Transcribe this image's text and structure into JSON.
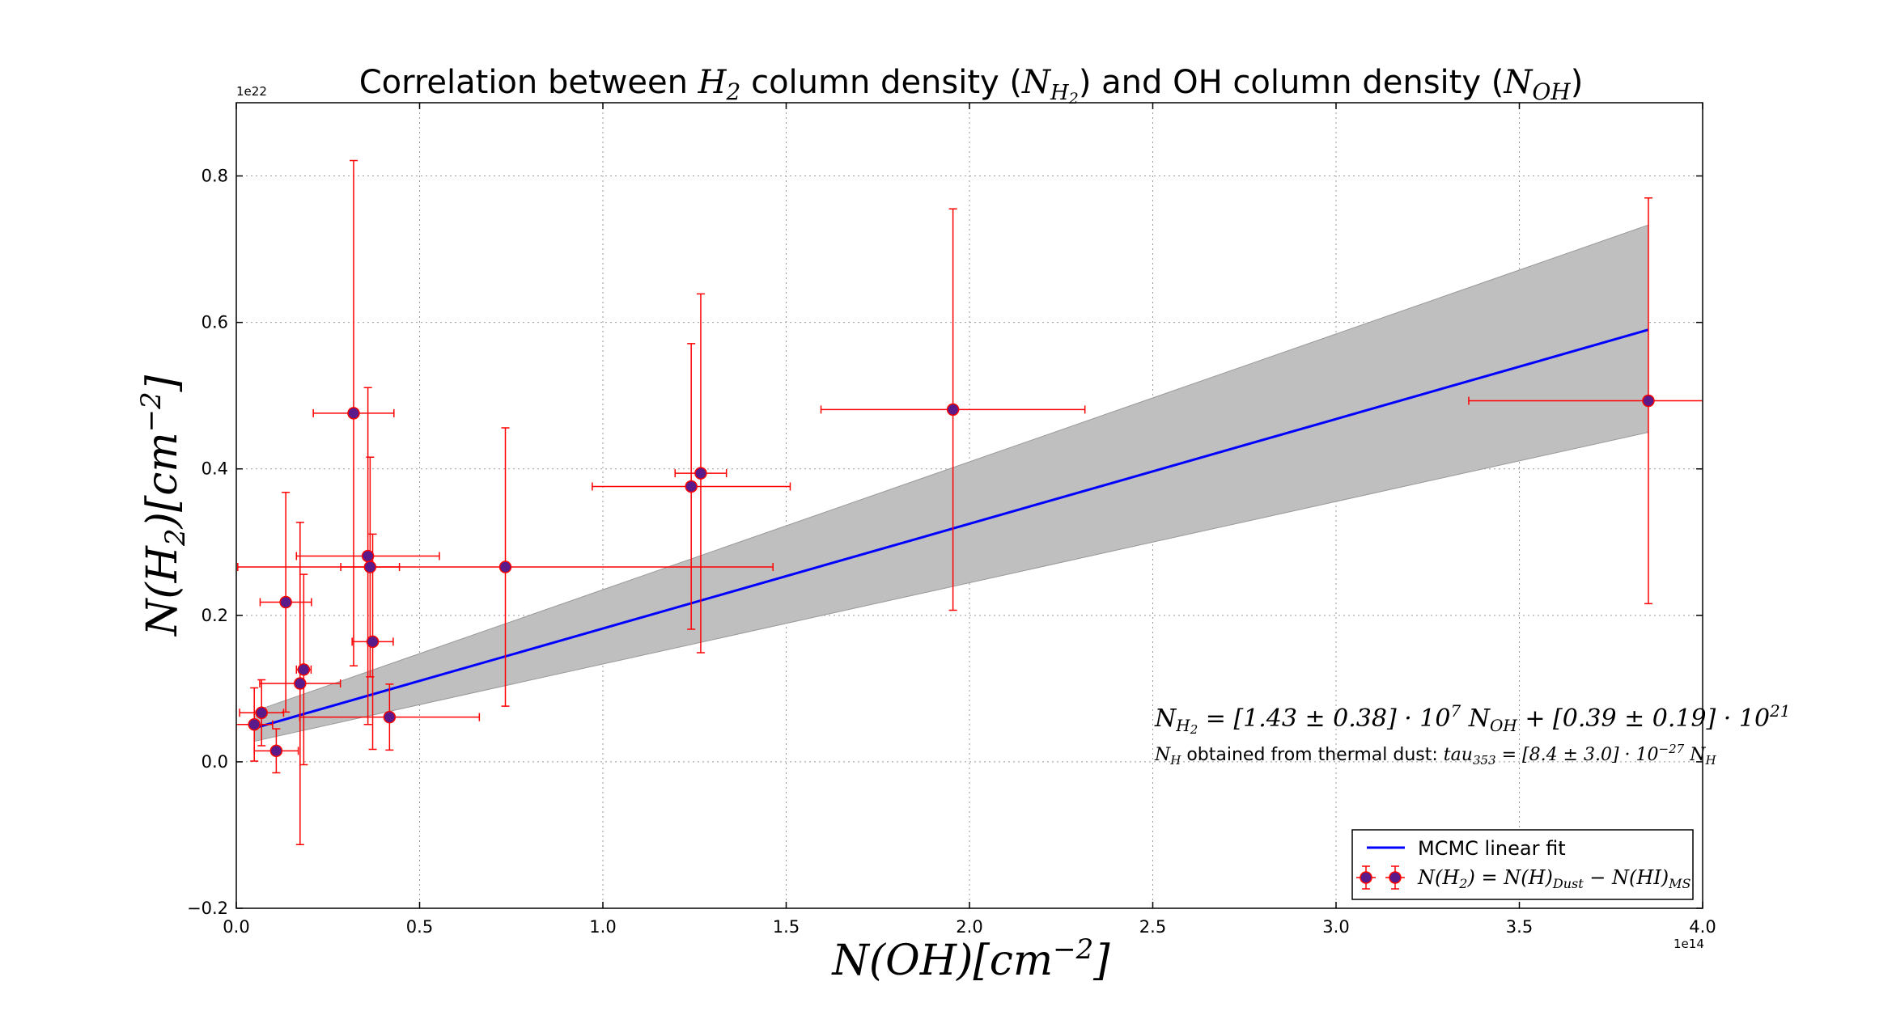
{
  "chart_data": {
    "type": "scatter",
    "title": [
      "Correlation between ",
      "H",
      "2",
      " column density (",
      "N",
      "H",
      "2",
      ") and OH column density (",
      "N",
      "OH",
      ")"
    ],
    "xlabel": [
      "N(OH)[cm",
      "−2",
      "]"
    ],
    "ylabel": [
      "N(H",
      "2",
      ")[cm",
      "−2",
      "]"
    ],
    "x_offset": "1e14",
    "y_offset": "1e22",
    "xlim": [
      0,
      4
    ],
    "ylim": [
      -0.2,
      0.9
    ],
    "xticks": [
      {
        "value": 0,
        "label": "0.0"
      },
      0.5,
      {
        "value": 1,
        "label": "1.0"
      },
      1.5,
      {
        "value": 2,
        "label": "2.0"
      },
      2.5,
      {
        "value": 3,
        "label": "3.0"
      },
      3.5,
      {
        "value": 4,
        "label": "4.0"
      }
    ],
    "yticks": [
      {
        "value": -0.2,
        "label": "−0.2"
      },
      {
        "value": 0,
        "label": "0.0"
      },
      0.2,
      0.4,
      0.6,
      0.8
    ],
    "grid": true,
    "legend": "lower right",
    "annotations": [
      [
        "N",
        "H",
        "2",
        " = [1.43 ± 0.38] · 10",
        "7",
        " N",
        "OH",
        " + [0.39 ± 0.19] · 10",
        "21"
      ],
      [
        "N",
        "H",
        " obtained from thermal dust: ",
        "tau",
        "353",
        " = [8.4 ± 3.0] · 10",
        "−27",
        " N",
        "H"
      ]
    ],
    "points": {
      "name": [
        "N(H",
        "2",
        ") = N(H)",
        "Dust",
        " − N(HI)",
        "MS"
      ],
      "color": "#5a1a8a",
      "edgecolor": "#ff0000",
      "errcolor": "#ff0000",
      "x": [
        0.049,
        0.069,
        0.109,
        0.135,
        0.174,
        0.184,
        0.32,
        0.359,
        0.365,
        0.372,
        0.418,
        0.734,
        1.241,
        1.267,
        1.955,
        3.852
      ],
      "xerr": [
        0.05,
        0.06,
        0.06,
        0.07,
        0.11,
        0.02,
        0.11,
        0.195,
        0.08,
        0.056,
        0.245,
        0.73,
        0.27,
        0.07,
        0.36,
        0.49
      ],
      "y": [
        0.051,
        0.067,
        0.015,
        0.218,
        0.107,
        0.126,
        0.476,
        0.281,
        0.266,
        0.164,
        0.061,
        0.266,
        0.376,
        0.394,
        0.481,
        0.493
      ],
      "yerr": [
        0.05,
        0.045,
        0.03,
        0.15,
        0.22,
        0.13,
        0.345,
        0.23,
        0.15,
        0.147,
        0.045,
        0.19,
        0.195,
        0.245,
        0.274,
        0.277
      ]
    },
    "fit": {
      "name": "MCMC linear fit",
      "color": "#0000ff",
      "band_color": "#bfbfbf",
      "x": [
        0.049,
        3.852
      ],
      "values": [
        0.046,
        0.59
      ],
      "lower": [
        0.028,
        0.45
      ],
      "upper": [
        0.069,
        0.733
      ]
    }
  }
}
